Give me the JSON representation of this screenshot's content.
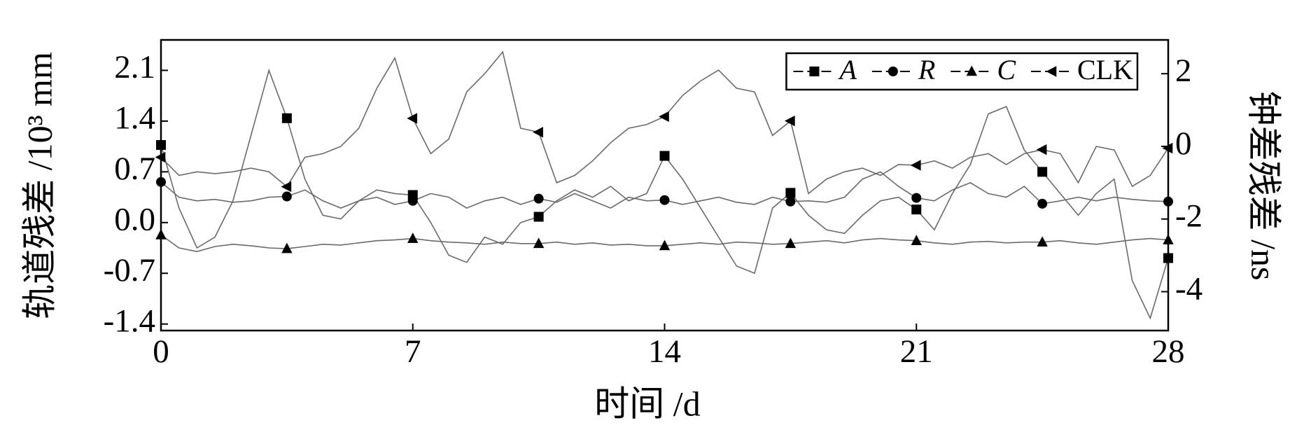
{
  "chart_data": {
    "type": "line",
    "xlabel": "时间 /d",
    "ylabel": "轨道残差 /10³ mm",
    "y2label": "钟差残差 /ns",
    "xlim": [
      0,
      28
    ],
    "xticks": [
      0,
      7,
      14,
      21,
      28
    ],
    "ylim": [
      -1.49,
      2.52
    ],
    "yticks": [
      -1.4,
      -0.7,
      {
        "value": 0,
        "label": "0.0"
      },
      0.7,
      1.4,
      2.1
    ],
    "y2lim": [
      -5.07,
      2.93
    ],
    "y2ticks": [
      -4,
      -2,
      0,
      2
    ],
    "legend": "upper right",
    "markevery": 7,
    "x": [
      0,
      0.5,
      1,
      1.5,
      2,
      2.5,
      3,
      3.5,
      4,
      4.5,
      5,
      5.5,
      6,
      6.5,
      7,
      7.5,
      8,
      8.5,
      9,
      9.5,
      10,
      10.5,
      11,
      11.5,
      12,
      12.5,
      13,
      13.5,
      14,
      14.5,
      15,
      15.5,
      16,
      16.5,
      17,
      17.5,
      18,
      18.5,
      19,
      19.5,
      20,
      20.5,
      21,
      21.5,
      22,
      22.5,
      23,
      23.5,
      24,
      24.5,
      25,
      25.5,
      26,
      26.5,
      27,
      27.5,
      28
    ],
    "series": [
      {
        "name": "A",
        "italic": true,
        "marker": "square",
        "color": "#6a6a6a",
        "marker_color": "#000000",
        "values": [
          1.07,
          0.2,
          -0.35,
          -0.2,
          0.3,
          1.2,
          2.1,
          1.44,
          0.6,
          0.1,
          0.05,
          0.3,
          0.45,
          0.4,
          0.38,
          0.0,
          -0.45,
          -0.55,
          -0.2,
          -0.3,
          0.0,
          0.08,
          0.3,
          0.45,
          0.35,
          0.5,
          0.3,
          0.4,
          0.92,
          0.6,
          0.2,
          -0.2,
          -0.6,
          -0.7,
          0.2,
          0.41,
          0.1,
          -0.1,
          -0.15,
          0.1,
          0.3,
          0.35,
          0.18,
          -0.1,
          0.4,
          0.8,
          1.5,
          1.6,
          1.0,
          0.7,
          0.4,
          0.1,
          0.4,
          0.6,
          -0.8,
          -1.32,
          -0.49
        ]
      },
      {
        "name": "R",
        "italic": true,
        "marker": "circle",
        "color": "#6a6a6a",
        "marker_color": "#000000",
        "values": [
          0.56,
          0.35,
          0.3,
          0.32,
          0.28,
          0.3,
          0.35,
          0.36,
          0.45,
          0.3,
          0.2,
          0.3,
          0.35,
          0.25,
          0.3,
          0.4,
          0.35,
          0.2,
          0.3,
          0.35,
          0.25,
          0.33,
          0.28,
          0.4,
          0.3,
          0.2,
          0.35,
          0.3,
          0.31,
          0.25,
          0.3,
          0.35,
          0.28,
          0.25,
          0.35,
          0.29,
          0.3,
          0.28,
          0.35,
          0.6,
          0.7,
          0.5,
          0.34,
          0.3,
          0.45,
          0.55,
          0.4,
          0.35,
          0.5,
          0.26,
          0.3,
          0.35,
          0.3,
          0.35,
          0.32,
          0.3,
          0.29
        ]
      },
      {
        "name": "C",
        "italic": true,
        "marker": "triangle-up",
        "color": "#6a6a6a",
        "marker_color": "#000000",
        "values": [
          -0.17,
          -0.35,
          -0.4,
          -0.33,
          -0.3,
          -0.32,
          -0.35,
          -0.36,
          -0.33,
          -0.3,
          -0.31,
          -0.28,
          -0.25,
          -0.24,
          -0.22,
          -0.25,
          -0.27,
          -0.28,
          -0.3,
          -0.27,
          -0.29,
          -0.29,
          -0.27,
          -0.3,
          -0.28,
          -0.31,
          -0.3,
          -0.32,
          -0.32,
          -0.3,
          -0.28,
          -0.3,
          -0.27,
          -0.28,
          -0.3,
          -0.29,
          -0.27,
          -0.25,
          -0.28,
          -0.24,
          -0.22,
          -0.24,
          -0.25,
          -0.28,
          -0.3,
          -0.27,
          -0.26,
          -0.28,
          -0.27,
          -0.27,
          -0.25,
          -0.28,
          -0.3,
          -0.27,
          -0.24,
          -0.22,
          -0.24
        ]
      },
      {
        "name": "CLK",
        "italic": false,
        "marker": "triangle-left",
        "axis": "y2",
        "color": "#6a6a6a",
        "marker_color": "#000000",
        "values": [
          -0.3,
          -0.8,
          -0.7,
          -0.75,
          -0.7,
          -0.6,
          -0.7,
          -1.11,
          -0.3,
          -0.2,
          0.0,
          0.5,
          1.6,
          2.43,
          0.77,
          -0.2,
          0.2,
          1.5,
          2.0,
          2.6,
          0.5,
          0.39,
          -1.0,
          -0.8,
          -0.4,
          0.1,
          0.5,
          0.6,
          0.82,
          1.4,
          1.8,
          2.1,
          1.6,
          1.5,
          0.3,
          0.7,
          -1.3,
          -0.9,
          -0.7,
          -0.6,
          -0.8,
          -0.5,
          -0.52,
          -0.4,
          -0.6,
          -0.3,
          -0.2,
          -0.5,
          -0.2,
          -0.09,
          -0.2,
          -1.0,
          0.0,
          -0.1,
          -1.1,
          -0.8,
          -0.05
        ]
      }
    ]
  }
}
